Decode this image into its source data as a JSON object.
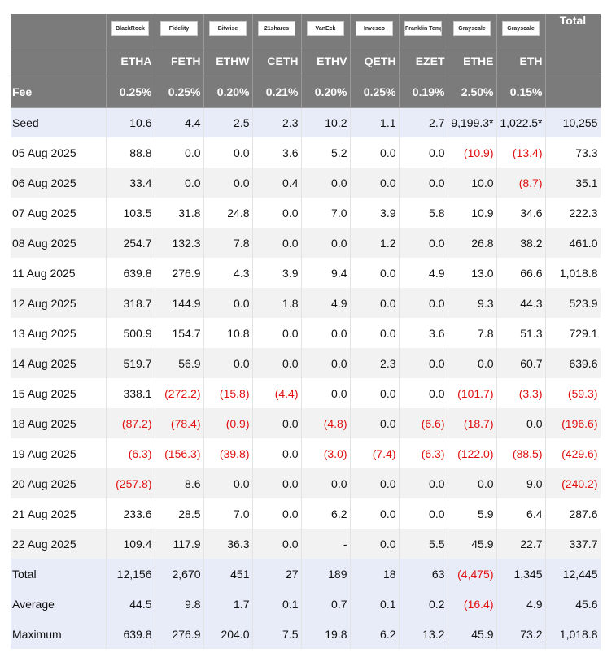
{
  "table": {
    "logos": [
      "BlackRock",
      "Fidelity",
      "Bitwise",
      "21shares",
      "VanEck",
      "Invesco",
      "Franklin Templeton",
      "Grayscale",
      "Grayscale"
    ],
    "total_header": "Total",
    "tickers": [
      "ETHA",
      "FETH",
      "ETHW",
      "CETH",
      "ETHV",
      "QETH",
      "EZET",
      "ETHE",
      "ETH"
    ],
    "fee_label": "Fee",
    "fees": [
      "0.25%",
      "0.25%",
      "0.20%",
      "0.21%",
      "0.20%",
      "0.25%",
      "0.19%",
      "2.50%",
      "0.15%"
    ],
    "seed_row": [
      "Seed",
      "10.6",
      "4.4",
      "2.5",
      "2.3",
      "10.2",
      "1.1",
      "2.7",
      "9,199.3*",
      "1,022.5*",
      "10,255"
    ],
    "daily_rows": [
      [
        "05 Aug 2025",
        "88.8",
        "0.0",
        "0.0",
        "3.6",
        "5.2",
        "0.0",
        "0.0",
        "(10.9)",
        "(13.4)",
        "73.3"
      ],
      [
        "06 Aug 2025",
        "33.4",
        "0.0",
        "0.0",
        "0.4",
        "0.0",
        "0.0",
        "0.0",
        "10.0",
        "(8.7)",
        "35.1"
      ],
      [
        "07 Aug 2025",
        "103.5",
        "31.8",
        "24.8",
        "0.0",
        "7.0",
        "3.9",
        "5.8",
        "10.9",
        "34.6",
        "222.3"
      ],
      [
        "08 Aug 2025",
        "254.7",
        "132.3",
        "7.8",
        "0.0",
        "0.0",
        "1.2",
        "0.0",
        "26.8",
        "38.2",
        "461.0"
      ],
      [
        "11 Aug 2025",
        "639.8",
        "276.9",
        "4.3",
        "3.9",
        "9.4",
        "0.0",
        "4.9",
        "13.0",
        "66.6",
        "1,018.8"
      ],
      [
        "12 Aug 2025",
        "318.7",
        "144.9",
        "0.0",
        "1.8",
        "4.9",
        "0.0",
        "0.0",
        "9.3",
        "44.3",
        "523.9"
      ],
      [
        "13 Aug 2025",
        "500.9",
        "154.7",
        "10.8",
        "0.0",
        "0.0",
        "0.0",
        "3.6",
        "7.8",
        "51.3",
        "729.1"
      ],
      [
        "14 Aug 2025",
        "519.7",
        "56.9",
        "0.0",
        "0.0",
        "0.0",
        "2.3",
        "0.0",
        "0.0",
        "60.7",
        "639.6"
      ],
      [
        "15 Aug 2025",
        "338.1",
        "(272.2)",
        "(15.8)",
        "(4.4)",
        "0.0",
        "0.0",
        "0.0",
        "(101.7)",
        "(3.3)",
        "(59.3)"
      ],
      [
        "18 Aug 2025",
        "(87.2)",
        "(78.4)",
        "(0.9)",
        "0.0",
        "(4.8)",
        "0.0",
        "(6.6)",
        "(18.7)",
        "0.0",
        "(196.6)"
      ],
      [
        "19 Aug 2025",
        "(6.3)",
        "(156.3)",
        "(39.8)",
        "0.0",
        "(3.0)",
        "(7.4)",
        "(6.3)",
        "(122.0)",
        "(88.5)",
        "(429.6)"
      ],
      [
        "20 Aug 2025",
        "(257.8)",
        "8.6",
        "0.0",
        "0.0",
        "0.0",
        "0.0",
        "0.0",
        "0.0",
        "9.0",
        "(240.2)"
      ],
      [
        "21 Aug 2025",
        "233.6",
        "28.5",
        "7.0",
        "0.0",
        "6.2",
        "0.0",
        "0.0",
        "5.9",
        "6.4",
        "287.6"
      ],
      [
        "22 Aug 2025",
        "109.4",
        "117.9",
        "36.3",
        "0.0",
        "-",
        "0.0",
        "5.5",
        "45.9",
        "22.7",
        "337.7"
      ]
    ],
    "summary_rows": [
      [
        "Total",
        "12,156",
        "2,670",
        "451",
        "27",
        "189",
        "18",
        "63",
        "(4,475)",
        "1,345",
        "12,445"
      ],
      [
        "Average",
        "44.5",
        "9.8",
        "1.7",
        "0.1",
        "0.7",
        "0.1",
        "0.2",
        "(16.4)",
        "4.9",
        "45.6"
      ],
      [
        "Maximum",
        "639.8",
        "276.9",
        "204.0",
        "7.5",
        "19.8",
        "6.2",
        "13.2",
        "45.9",
        "73.2",
        "1,018.8"
      ]
    ]
  }
}
